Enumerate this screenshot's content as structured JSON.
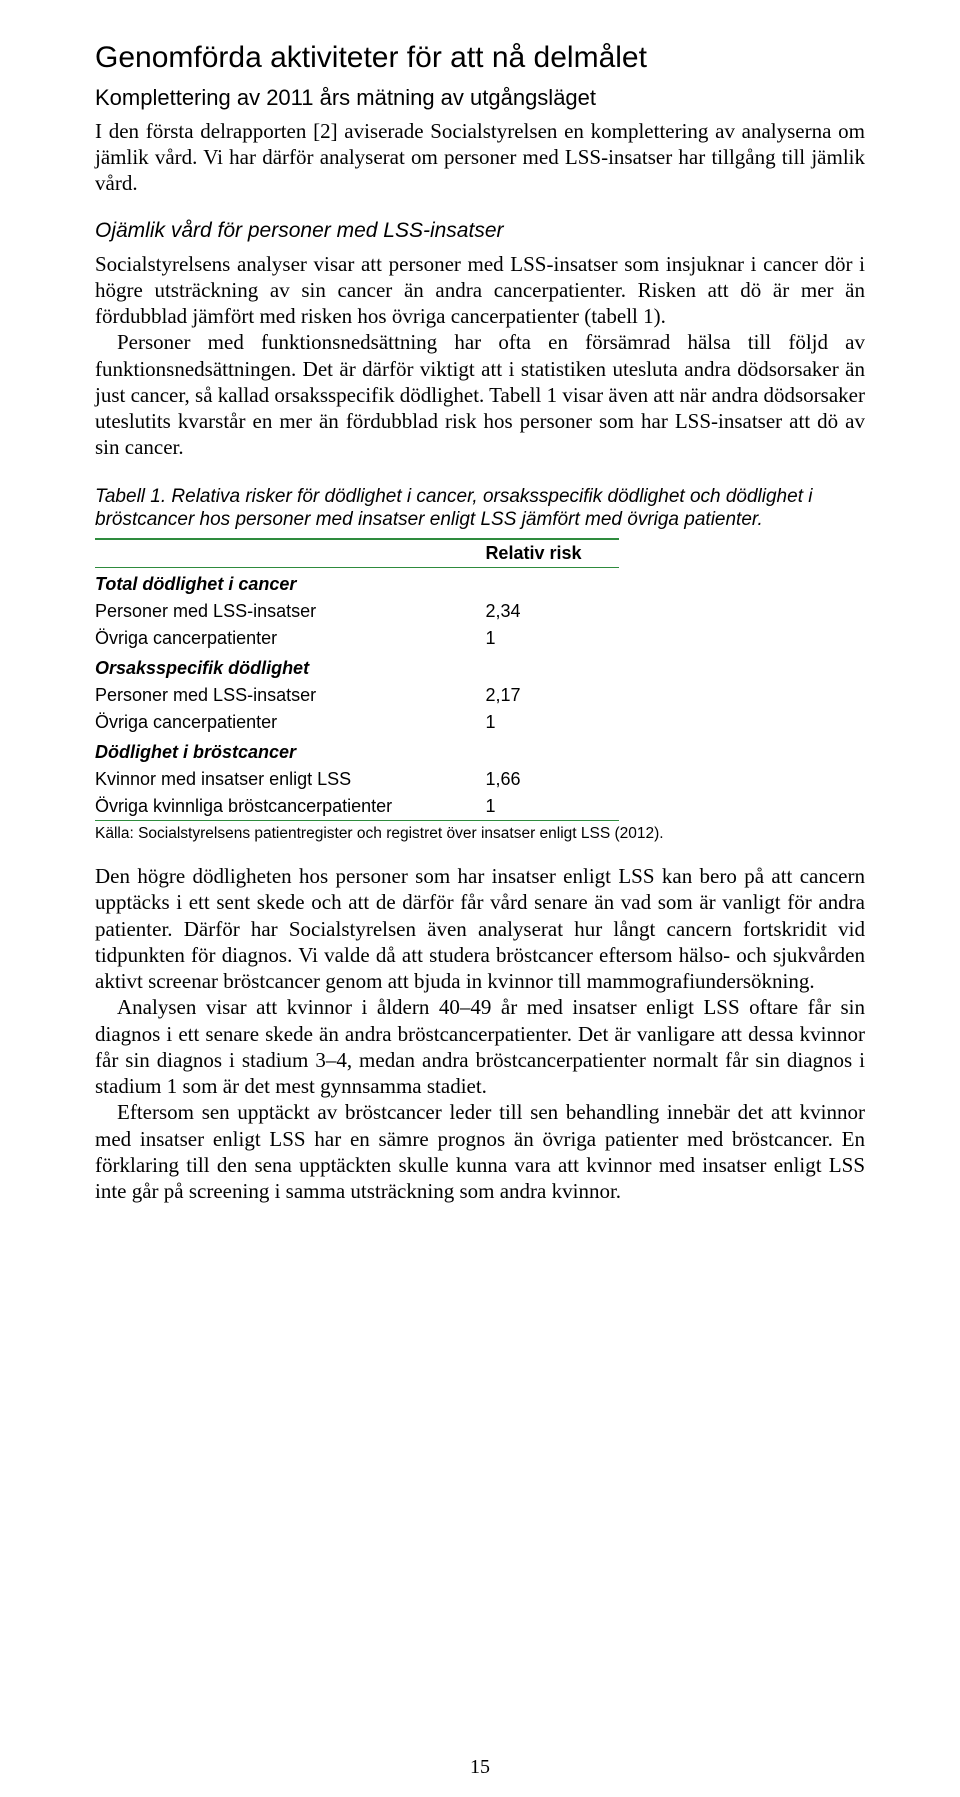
{
  "page_number": "15",
  "headings": {
    "h1": "Genomförda aktiviteter för att nå delmålet",
    "h2": "Komplettering av 2011 års mätning av utgångsläget",
    "h3": "Ojämlik vård för personer med LSS-insatser"
  },
  "para1": "I den första delrapporten [2] aviserade Socialstyrelsen en komplettering av analyserna om jämlik vård. Vi har därför analyserat om personer med LSS-insatser har tillgång till jämlik vård.",
  "para2": "Socialstyrelsens analyser visar att personer med LSS-insatser som insjuknar i cancer dör i högre utsträckning av sin cancer än andra cancerpatienter. Risken att dö är mer än fördubblad jämfört med risken hos övriga cancerpatienter (tabell 1).",
  "para3": "Personer med funktionsnedsättning har ofta en försämrad hälsa till följd av funktionsnedsättningen. Det är därför viktigt att i statistiken utesluta andra dödsorsaker än just cancer, så kallad orsaksspecifik dödlighet. Tabell 1 visar även att när andra dödsorsaker uteslutits kvarstår en mer än fördubblad risk hos personer som har LSS-insatser att dö av sin cancer.",
  "table": {
    "caption": "Tabell 1. Relativa risker för dödlighet i cancer, orsaksspecifik dödlighet och dödlighet i bröstcancer hos personer med insatser enligt LSS jämfört med övriga patienter.",
    "header_rr": "Relativ risk",
    "sections": [
      {
        "title": "Total dödlighet i cancer",
        "rows": [
          {
            "label": "Personer med LSS-insatser",
            "value": "2,34"
          },
          {
            "label": "Övriga cancerpatienter",
            "value": "1"
          }
        ]
      },
      {
        "title": "Orsaksspecifik dödlighet",
        "rows": [
          {
            "label": "Personer med LSS-insatser",
            "value": "2,17"
          },
          {
            "label": "Övriga cancerpatienter",
            "value": "1"
          }
        ]
      },
      {
        "title": "Dödlighet i bröstcancer",
        "rows": [
          {
            "label": "Kvinnor med insatser enligt LSS",
            "value": "1,66"
          },
          {
            "label": "Övriga kvinnliga bröstcancerpatienter",
            "value": "1"
          }
        ]
      }
    ],
    "source": "Källa: Socialstyrelsens patientregister och registret över insatser enligt LSS (2012).",
    "rule_color": "#2e8b3d"
  },
  "para4": "Den högre dödligheten hos personer som har insatser enligt LSS kan bero på att cancern upptäcks i ett sent skede och att de därför får vård senare än vad som är vanligt för andra patienter. Därför har Socialstyrelsen även analyserat hur långt cancern fortskridit vid tidpunkten för diagnos. Vi valde då att studera bröstcancer eftersom hälso- och sjukvården aktivt screenar bröstcancer genom att bjuda in kvinnor till mammografiundersökning.",
  "para5": "Analysen visar att kvinnor i åldern 40–49 år med insatser enligt LSS oftare får sin diagnos i ett senare skede än andra bröstcancerpatienter. Det är vanligare att dessa kvinnor får sin diagnos i stadium 3–4, medan andra bröstcancerpatienter normalt får sin diagnos i stadium 1 som är det mest gynnsamma stadiet.",
  "para6": "Eftersom sen upptäckt av bröstcancer leder till sen behandling innebär det att kvinnor med insatser enligt LSS har en sämre prognos än övriga patienter med bröstcancer. En förklaring till den sena upptäckten skulle kunna vara att kvinnor med insatser enligt LSS inte går på screening i samma utsträckning som andra kvinnor."
}
